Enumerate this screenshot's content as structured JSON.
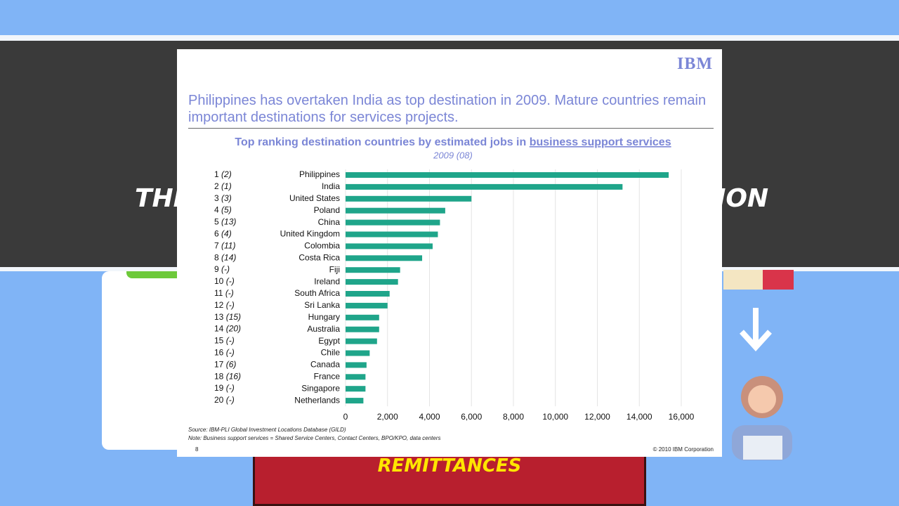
{
  "background": {
    "banner_left": "THE",
    "banner_right": "ION",
    "footer_label": "REMITTANCES"
  },
  "slide": {
    "logo": "IBM",
    "heading": "Philippines has overtaken India as top destination in 2009. Mature countries remain important destinations for services projects.",
    "source": "Source: IBM-PLI Global Investment Locations Database (GILD)",
    "note": "Note: Business support services = Shared Service Centers, Contact Centers, BPO/KPO, data centers",
    "page_number": "8",
    "copyright": "© 2010 IBM Corporation"
  },
  "chart_data": {
    "type": "bar",
    "orientation": "horizontal",
    "title": "Top ranking destination countries by estimated jobs in",
    "title_underlined": "business support services",
    "subtitle": "2009 (08)",
    "categories": [
      "Philippines",
      "India",
      "United States",
      "Poland",
      "China",
      "United Kingdom",
      "Colombia",
      "Costa Rica",
      "Fiji",
      "Ireland",
      "South Africa",
      "Sri Lanka",
      "Hungary",
      "Australia",
      "Egypt",
      "Chile",
      "Canada",
      "France",
      "Singapore",
      "Netherlands"
    ],
    "ranks": [
      "1",
      "2",
      "3",
      "4",
      "5",
      "6",
      "7",
      "8",
      "9",
      "10",
      "11",
      "12",
      "13",
      "14",
      "15",
      "16",
      "17",
      "18",
      "19",
      "20"
    ],
    "previous_ranks": [
      "(2)",
      "(1)",
      "(3)",
      "(5)",
      "(13)",
      "(4)",
      "(11)",
      "(14)",
      "(-)",
      "(-)",
      "(-)",
      "(-)",
      "(15)",
      "(20)",
      "(-)",
      "(-)",
      "(6)",
      "(16)",
      "(-)",
      "(-)"
    ],
    "values": [
      15400,
      13200,
      6000,
      4750,
      4500,
      4400,
      4150,
      3650,
      2600,
      2500,
      2100,
      2000,
      1600,
      1600,
      1500,
      1150,
      1000,
      950,
      950,
      850
    ],
    "color": "#1fa58a",
    "xlim": [
      0,
      16000
    ],
    "xticks": [
      0,
      {
        "value": 2000,
        "label": "2,000"
      },
      {
        "value": 4000,
        "label": "4,000"
      },
      {
        "value": 6000,
        "label": "6,000"
      },
      {
        "value": 8000,
        "label": "8,000"
      },
      {
        "value": 10000,
        "label": "10,000"
      },
      {
        "value": 12000,
        "label": "12,000"
      },
      {
        "value": 14000,
        "label": "14,000"
      },
      {
        "value": 16000,
        "label": "16,000"
      }
    ],
    "grid": true
  }
}
